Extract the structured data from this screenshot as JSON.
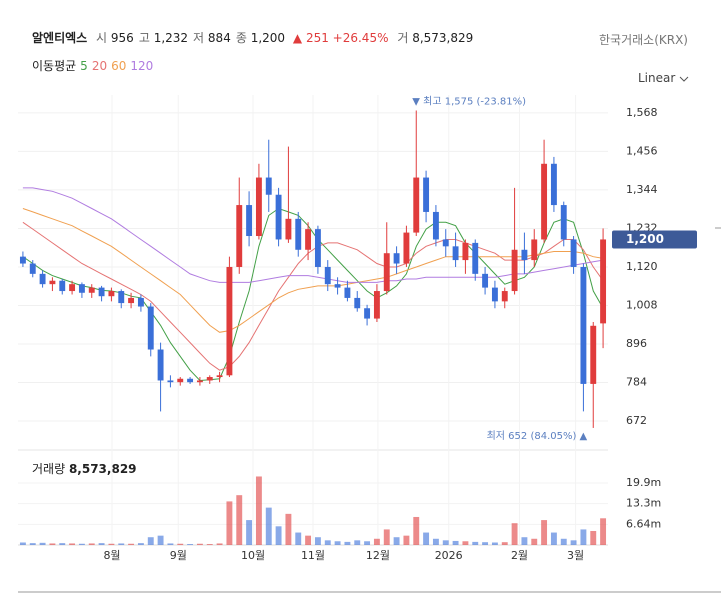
{
  "header": {
    "name": "알엔티엑스",
    "fields": [
      {
        "label": "시",
        "value": "956"
      },
      {
        "label": "고",
        "value": "1,232"
      },
      {
        "label": "저",
        "value": "884"
      },
      {
        "label": "종",
        "value": "1,200"
      }
    ],
    "change": "251",
    "change_pct": "+26.45%",
    "volume_label": "거",
    "volume": "8,573,829",
    "exchange": "한국거래소(KRX)",
    "ma_title": "이동평균",
    "scale": "Linear",
    "volume_title": "거래량"
  },
  "chart_data": {
    "type": "candlestick",
    "up_color": "#e03c3c",
    "down_color": "#3a6fd8",
    "categories": [
      null,
      null,
      null,
      null,
      null,
      null,
      null,
      null,
      null,
      null,
      null,
      null,
      null,
      null,
      null,
      null,
      null,
      null,
      null,
      null,
      null,
      null,
      null,
      null,
      null,
      null,
      null,
      null,
      null,
      null,
      null,
      null,
      null,
      null,
      null,
      null,
      null,
      null,
      null,
      null,
      null,
      null,
      null,
      null,
      null,
      null,
      null,
      null,
      null,
      null,
      null,
      null,
      null,
      null,
      null,
      null,
      null,
      null,
      null,
      null
    ],
    "open": [
      1150,
      1130,
      1100,
      1070,
      1080,
      1050,
      1070,
      1045,
      1060,
      1035,
      1050,
      1015,
      1030,
      1005,
      880,
      790,
      785,
      795,
      785,
      790,
      800,
      805,
      1120,
      1300,
      1210,
      1380,
      1330,
      1200,
      1260,
      1170,
      1230,
      1120,
      1070,
      1060,
      1030,
      1000,
      970,
      1050,
      1160,
      1130,
      1220,
      1380,
      1280,
      1200,
      1180,
      1140,
      1190,
      1100,
      1060,
      1020,
      1050,
      1170,
      1140,
      1200,
      1420,
      1300,
      1200,
      1120,
      780,
      956
    ],
    "high": [
      1165,
      1140,
      1110,
      1090,
      1085,
      1080,
      1075,
      1070,
      1065,
      1060,
      1055,
      1045,
      1040,
      1015,
      900,
      805,
      800,
      800,
      800,
      805,
      815,
      1150,
      1380,
      1340,
      1420,
      1490,
      1350,
      1470,
      1280,
      1250,
      1240,
      1140,
      1090,
      1080,
      1050,
      1010,
      1070,
      1250,
      1180,
      1240,
      1575,
      1400,
      1300,
      1230,
      1220,
      1200,
      1200,
      1120,
      1080,
      1060,
      1350,
      1220,
      1230,
      1490,
      1440,
      1310,
      1210,
      1130,
      960,
      1232
    ],
    "low": [
      1120,
      1090,
      1060,
      1050,
      1040,
      1040,
      1030,
      1030,
      1020,
      1020,
      1000,
      1000,
      990,
      860,
      700,
      770,
      775,
      780,
      775,
      780,
      785,
      800,
      1100,
      1180,
      1200,
      1280,
      1180,
      1190,
      1150,
      1140,
      1100,
      1050,
      1040,
      1020,
      990,
      950,
      960,
      1040,
      1100,
      1120,
      1210,
      1250,
      1180,
      1150,
      1120,
      1100,
      1080,
      1040,
      1000,
      1000,
      1040,
      1100,
      1120,
      1190,
      1280,
      1180,
      1100,
      700,
      652,
      884
    ],
    "close": [
      1130,
      1100,
      1070,
      1080,
      1050,
      1070,
      1045,
      1060,
      1035,
      1050,
      1015,
      1030,
      1005,
      880,
      790,
      785,
      795,
      785,
      790,
      800,
      805,
      1120,
      1300,
      1210,
      1380,
      1330,
      1200,
      1260,
      1170,
      1230,
      1120,
      1070,
      1060,
      1030,
      1000,
      970,
      1050,
      1160,
      1130,
      1220,
      1380,
      1280,
      1200,
      1180,
      1140,
      1190,
      1100,
      1060,
      1020,
      1050,
      1170,
      1140,
      1200,
      1420,
      1300,
      1200,
      1120,
      780,
      949,
      1200
    ],
    "volume": [
      800000,
      600000,
      700000,
      500000,
      600000,
      500000,
      400000,
      500000,
      600000,
      400000,
      500000,
      400000,
      600000,
      2500000,
      3000000,
      500000,
      400000,
      300000,
      400000,
      300000,
      500000,
      14000000,
      16000000,
      8000000,
      22000000,
      12000000,
      6000000,
      10000000,
      4000000,
      3000000,
      2500000,
      1500000,
      1200000,
      1000000,
      1500000,
      1200000,
      2000000,
      5000000,
      2500000,
      3000000,
      9000000,
      4000000,
      2000000,
      1500000,
      1300000,
      1200000,
      1000000,
      900000,
      800000,
      900000,
      7000000,
      2500000,
      2000000,
      8000000,
      4000000,
      2000000,
      1500000,
      5000000,
      4500000,
      8573829
    ],
    "series": [
      {
        "name": "5",
        "color": "#43a047",
        "values": [
          1150,
          1130,
          1110,
          1095,
          1085,
          1075,
          1065,
          1060,
          1052,
          1050,
          1045,
          1035,
          1030,
          990,
          950,
          900,
          860,
          820,
          790,
          792,
          795,
          860,
          960,
          1050,
          1180,
          1270,
          1290,
          1280,
          1270,
          1240,
          1200,
          1170,
          1140,
          1110,
          1080,
          1050,
          1030,
          1045,
          1065,
          1100,
          1180,
          1230,
          1250,
          1250,
          1240,
          1190,
          1160,
          1130,
          1100,
          1070,
          1080,
          1090,
          1120,
          1190,
          1250,
          1260,
          1250,
          1160,
          1050,
          1000
        ]
      },
      {
        "name": "20",
        "color": "#e57373",
        "values": [
          1250,
          1230,
          1210,
          1190,
          1170,
          1150,
          1130,
          1115,
          1100,
          1085,
          1070,
          1055,
          1040,
          1020,
          990,
          960,
          930,
          900,
          870,
          840,
          820,
          830,
          860,
          900,
          950,
          1000,
          1050,
          1090,
          1130,
          1160,
          1180,
          1190,
          1190,
          1180,
          1170,
          1150,
          1130,
          1120,
          1120,
          1130,
          1160,
          1180,
          1190,
          1200,
          1200,
          1190,
          1180,
          1170,
          1160,
          1140,
          1140,
          1140,
          1150,
          1160,
          1180,
          1200,
          1200,
          1170,
          1120,
          1080
        ]
      },
      {
        "name": "60",
        "color": "#f0a050",
        "values": [
          1290,
          1280,
          1270,
          1260,
          1250,
          1240,
          1225,
          1210,
          1195,
          1180,
          1160,
          1140,
          1120,
          1100,
          1080,
          1060,
          1040,
          1010,
          980,
          950,
          930,
          935,
          950,
          970,
          990,
          1010,
          1030,
          1045,
          1055,
          1060,
          1065,
          1065,
          1065,
          1070,
          1075,
          1080,
          1085,
          1090,
          1100,
          1110,
          1120,
          1130,
          1140,
          1150,
          1150,
          1150,
          1150,
          1150,
          1150,
          1150,
          1150,
          1150,
          1155,
          1160,
          1165,
          1165,
          1165,
          1160,
          1150,
          1145
        ]
      },
      {
        "name": "120",
        "color": "#b07ce0",
        "values": [
          1350,
          1350,
          1345,
          1340,
          1330,
          1320,
          1305,
          1290,
          1275,
          1260,
          1240,
          1220,
          1200,
          1180,
          1160,
          1140,
          1120,
          1100,
          1090,
          1080,
          1075,
          1075,
          1075,
          1075,
          1080,
          1085,
          1090,
          1095,
          1095,
          1095,
          1090,
          1085,
          1080,
          1075,
          1075,
          1075,
          1075,
          1080,
          1080,
          1085,
          1085,
          1090,
          1090,
          1090,
          1090,
          1090,
          1090,
          1090,
          1090,
          1095,
          1100,
          1100,
          1105,
          1110,
          1115,
          1120,
          1125,
          1130,
          1135,
          1140
        ]
      }
    ],
    "ylim": [
      646,
      1620
    ],
    "yticks": [
      672,
      784,
      896,
      {
        "value": 1008,
        "label": "1,008"
      },
      {
        "value": 1120,
        "label": "1,120"
      },
      {
        "value": 1232,
        "label": "1,232"
      },
      {
        "value": 1344,
        "label": "1,344"
      },
      {
        "value": 1456,
        "label": "1,456"
      },
      {
        "value": 1568,
        "label": "1,568"
      }
    ],
    "volume_ylim": [
      0,
      28900000
    ],
    "volume_yticks": [
      {
        "value": 6640000,
        "label": "6.64m"
      },
      {
        "value": 13300000,
        "label": "13.3m"
      },
      {
        "value": 19900000,
        "label": "19.9m"
      }
    ],
    "xticks": [
      {
        "value": 9.06,
        "label": "8월"
      },
      {
        "value": 15.8,
        "label": "9월"
      },
      {
        "value": 23.4,
        "label": "10월"
      },
      {
        "value": 29.5,
        "label": "11월"
      },
      {
        "value": 36.1,
        "label": "12월"
      },
      {
        "value": 43.3,
        "label": "2026"
      },
      {
        "value": 50.5,
        "label": "2월"
      },
      {
        "value": 56.2,
        "label": "3월"
      }
    ],
    "annotations": [
      {
        "text": "최고 1,575 (-23.81%)",
        "index": 40,
        "value": 1575
      },
      {
        "text": "최저 652 (84.05%)",
        "index": 58,
        "value": 652
      }
    ],
    "grid": true
  }
}
